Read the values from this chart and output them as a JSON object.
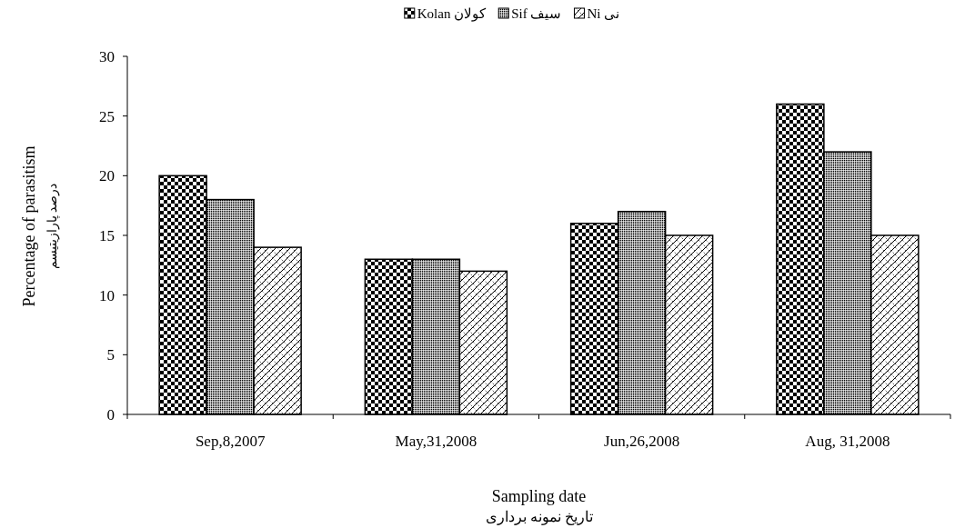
{
  "chart_data": {
    "type": "bar",
    "categories": [
      "Sep,8,2007",
      "May,31,2008",
      "Jun,26,2008",
      "Aug, 31,2008"
    ],
    "series": [
      {
        "name": "Kolan کولان",
        "color": "#000000",
        "values": [
          20,
          13,
          16,
          26
        ]
      },
      {
        "name": "Sif سیف",
        "color": "#000000",
        "values": [
          18,
          13,
          17,
          22
        ]
      },
      {
        "name": "Ni نی",
        "color": "#000000",
        "values": [
          14,
          12,
          15,
          15
        ]
      }
    ],
    "ylabel": "Percentage of parasitism\nدرصد پارازیتیسم",
    "xlabel": "Sampling date\nتاریخ نمونه برداری",
    "ylim": [
      0,
      30
    ],
    "yticks": [
      0,
      5,
      10,
      15,
      20,
      25,
      30
    ],
    "grid": false,
    "legend": "top"
  }
}
